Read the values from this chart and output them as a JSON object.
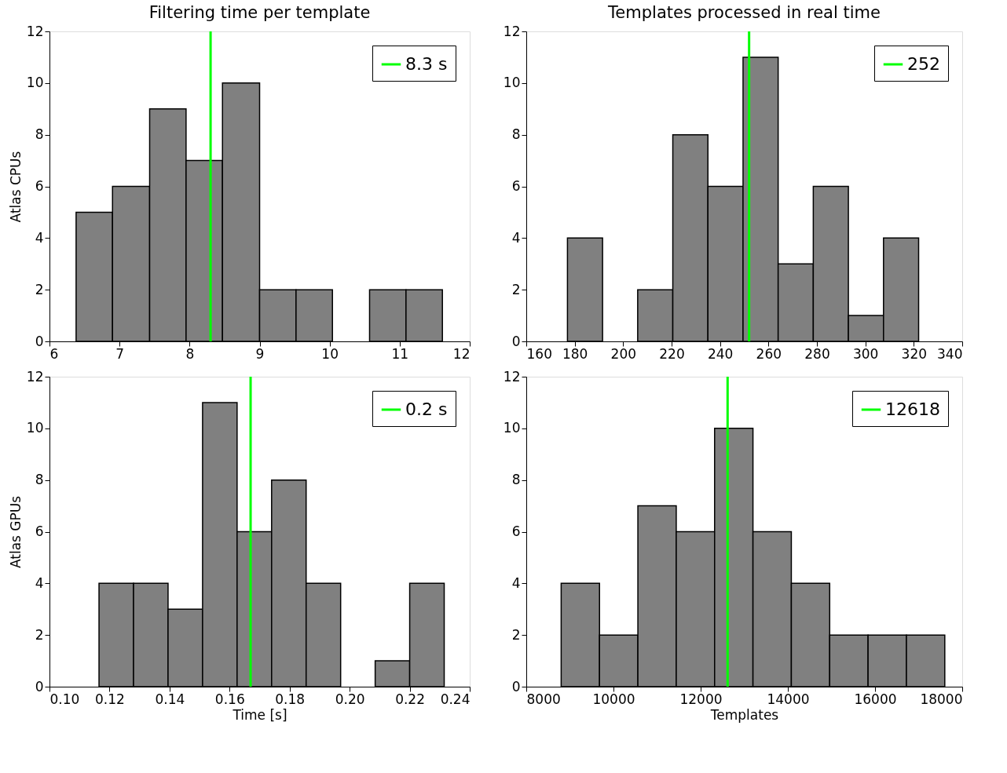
{
  "chart_data": [
    {
      "type": "histogram",
      "title": "Filtering time per template",
      "ylabel": "Atlas CPUs",
      "bins": [
        6.38,
        6.9,
        7.43,
        7.95,
        8.47,
        9.0,
        9.52,
        10.04,
        10.57,
        11.09,
        11.61
      ],
      "values": [
        5,
        6,
        9,
        7,
        10,
        2,
        2,
        0,
        2,
        2
      ],
      "color": "#808080",
      "xlim": [
        6,
        12
      ],
      "xticks": [
        6,
        7,
        8,
        9,
        10,
        11,
        12
      ],
      "ylim": [
        0,
        12
      ],
      "yticks": [
        0,
        2,
        4,
        6,
        8,
        10,
        12
      ],
      "grid": false,
      "legend": "top right",
      "series": [
        {
          "name": "8.3 s",
          "type": "line",
          "color": "#00ff00",
          "x": [
            8.3,
            8.3
          ],
          "values": [
            0,
            12
          ]
        }
      ]
    },
    {
      "type": "histogram",
      "title": "Templates processed in real time",
      "bins": [
        177,
        191.5,
        206,
        220.5,
        235,
        249.5,
        264,
        278.5,
        293,
        307.5,
        322
      ],
      "values": [
        4,
        0,
        2,
        8,
        6,
        11,
        3,
        6,
        1,
        4
      ],
      "color": "#808080",
      "xlim": [
        160,
        340
      ],
      "xticks": [
        160,
        180,
        200,
        220,
        240,
        260,
        280,
        300,
        320,
        340
      ],
      "ylim": [
        0,
        12
      ],
      "yticks": [
        0,
        2,
        4,
        6,
        8,
        10,
        12
      ],
      "grid": false,
      "legend": "top right",
      "series": [
        {
          "name": "252",
          "type": "line",
          "color": "#00ff00",
          "x": [
            252,
            252
          ],
          "values": [
            0,
            12
          ]
        }
      ]
    },
    {
      "type": "histogram",
      "xlabel": "Time [s]",
      "ylabel": "Atlas GPUs",
      "bins": [
        0.1165,
        0.128,
        0.1395,
        0.151,
        0.1625,
        0.174,
        0.1855,
        0.197,
        0.2085,
        0.22,
        0.2315
      ],
      "values": [
        4,
        4,
        3,
        11,
        6,
        8,
        4,
        0,
        1,
        4
      ],
      "color": "#808080",
      "xlim": [
        0.1,
        0.24
      ],
      "xticks": [
        {
          "value": 0.1,
          "label": "0.10"
        },
        0.12,
        0.14,
        0.16,
        0.18,
        {
          "value": 0.2,
          "label": "0.20"
        },
        0.22,
        0.24
      ],
      "ylim": [
        0,
        12
      ],
      "yticks": [
        0,
        2,
        4,
        6,
        8,
        10,
        12
      ],
      "grid": false,
      "legend": "top right",
      "series": [
        {
          "name": "0.2 s",
          "type": "line",
          "color": "#00ff00",
          "x": [
            0.167,
            0.167
          ],
          "values": [
            0,
            12
          ]
        }
      ]
    },
    {
      "type": "histogram",
      "xlabel": "Templates",
      "bins": [
        8800,
        9680,
        10560,
        11440,
        12320,
        13200,
        14080,
        14960,
        15840,
        16720,
        17600
      ],
      "values": [
        4,
        2,
        7,
        6,
        10,
        6,
        4,
        2,
        2,
        2
      ],
      "color": "#808080",
      "xlim": [
        8000,
        18000
      ],
      "xticks": [
        8000,
        10000,
        12000,
        14000,
        16000,
        18000
      ],
      "ylim": [
        0,
        12
      ],
      "yticks": [
        0,
        2,
        4,
        6,
        8,
        10,
        12
      ],
      "grid": false,
      "legend": "top right",
      "series": [
        {
          "name": "12618",
          "type": "line",
          "color": "#00ff00",
          "x": [
            12618,
            12618
          ],
          "values": [
            0,
            12
          ]
        }
      ]
    }
  ]
}
